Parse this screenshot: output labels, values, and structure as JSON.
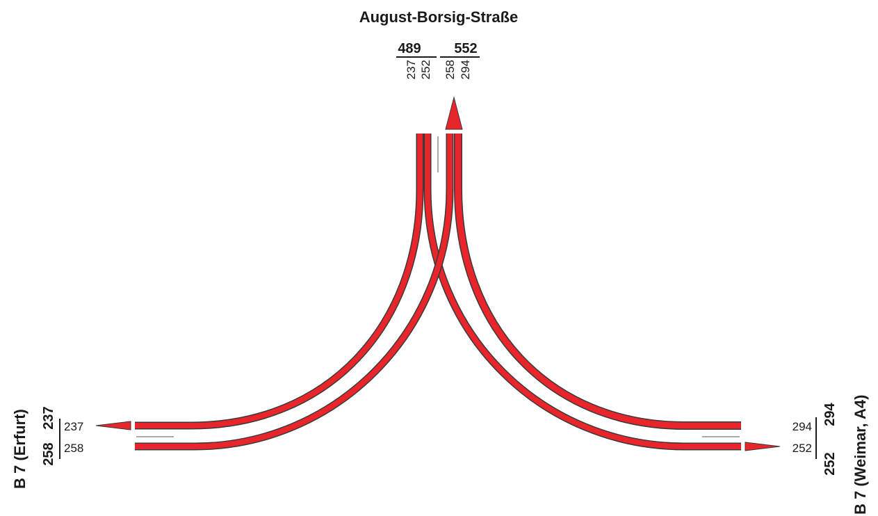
{
  "colors": {
    "flow": "#e8252a",
    "outline": "#3a3a3a",
    "text": "#1a1a1a"
  },
  "north": {
    "name": "August-Borsig-Straße",
    "total_in": "489",
    "total_out": "552",
    "in_lanes": [
      "237",
      "252"
    ],
    "out_lanes": [
      "258",
      "294"
    ]
  },
  "west": {
    "name": "B 7 (Erfurt)",
    "total_out": "237",
    "total_in": "258",
    "lane_out": "237",
    "lane_in": "258"
  },
  "east": {
    "name": "B 7 (Weimar, A4)",
    "total_in": "294",
    "total_out": "252",
    "lane_in": "294",
    "lane_out": "252"
  },
  "flows": [
    {
      "from": "north",
      "to": "west",
      "volume": 237
    },
    {
      "from": "north",
      "to": "east",
      "volume": 252
    },
    {
      "from": "west",
      "to": "north",
      "volume": 258
    },
    {
      "from": "east",
      "to": "north",
      "volume": 294
    }
  ]
}
